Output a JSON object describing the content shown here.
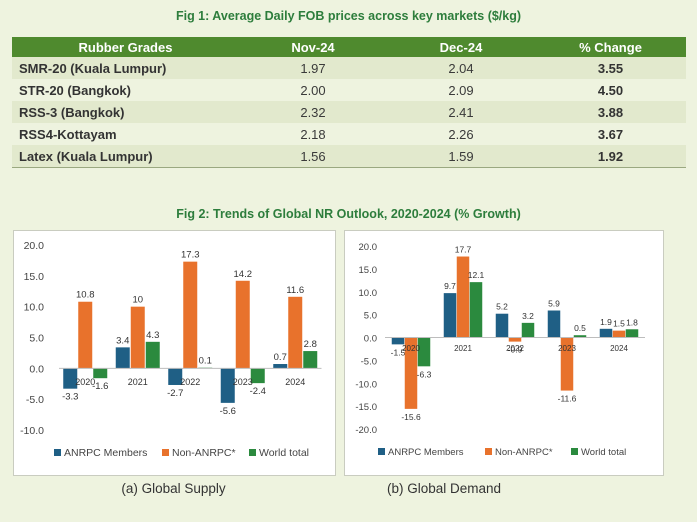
{
  "fig1": {
    "title": "Fig 1: Average Daily FOB prices across key markets ($/kg)",
    "headers": [
      "Rubber Grades",
      "Nov-24",
      "Dec-24",
      "% Change"
    ],
    "rows": [
      [
        "SMR-20 (Kuala Lumpur)",
        "1.97",
        "2.04",
        "3.55"
      ],
      [
        "STR-20 (Bangkok)",
        "2.00",
        "2.09",
        "4.50"
      ],
      [
        "RSS-3 (Bangkok)",
        "2.32",
        "2.41",
        "3.88"
      ],
      [
        "RSS4-Kottayam",
        "2.18",
        "2.26",
        "3.67"
      ],
      [
        "Latex (Kuala Lumpur)",
        "1.56",
        "1.59",
        "1.92"
      ]
    ]
  },
  "fig2": {
    "title": "Fig 2: Trends of Global NR Outlook, 2020-2024 (% Growth)",
    "colors": {
      "anrpc": "#1f5f85",
      "non": "#e8722c",
      "world": "#2b8a3e"
    }
  },
  "chart_data": [
    {
      "type": "bar",
      "title": "",
      "caption": "(a) Global Supply",
      "categories": [
        "2020",
        "2021",
        "2022",
        "2023",
        "2024"
      ],
      "series": [
        {
          "name": "ANRPC Members",
          "values": [
            -3.3,
            3.4,
            -2.7,
            -5.6,
            0.7
          ]
        },
        {
          "name": "Non-ANRPC*",
          "values": [
            10.8,
            10.0,
            17.3,
            14.2,
            11.6
          ]
        },
        {
          "name": "World total",
          "values": [
            -1.6,
            4.3,
            0.1,
            -2.4,
            2.8
          ]
        }
      ],
      "ylim": [
        -10,
        20
      ],
      "yticks": [
        "20.0",
        "15.0",
        "10.0",
        "5.0",
        "0.0",
        "-5.0",
        "-10.0"
      ],
      "grid": false,
      "legend": "bottom"
    },
    {
      "type": "bar",
      "title": "",
      "caption": "(b) Global Demand",
      "categories": [
        "2020",
        "2021",
        "2022",
        "2023",
        "2024"
      ],
      "series": [
        {
          "name": "ANRPC Members",
          "values": [
            -1.5,
            9.7,
            5.2,
            5.9,
            1.9
          ]
        },
        {
          "name": "Non-ANRPC*",
          "values": [
            -15.6,
            17.7,
            -0.9,
            -11.6,
            1.5
          ]
        },
        {
          "name": "World total",
          "values": [
            -6.3,
            12.1,
            3.2,
            0.5,
            1.8
          ]
        }
      ],
      "ylim": [
        -20,
        20
      ],
      "yticks": [
        "20.0",
        "15.0",
        "10.0",
        "5.0",
        "0.0",
        "-5.0",
        "-10.0",
        "-15.0",
        "-20.0"
      ],
      "grid": false,
      "legend": "bottom"
    }
  ]
}
